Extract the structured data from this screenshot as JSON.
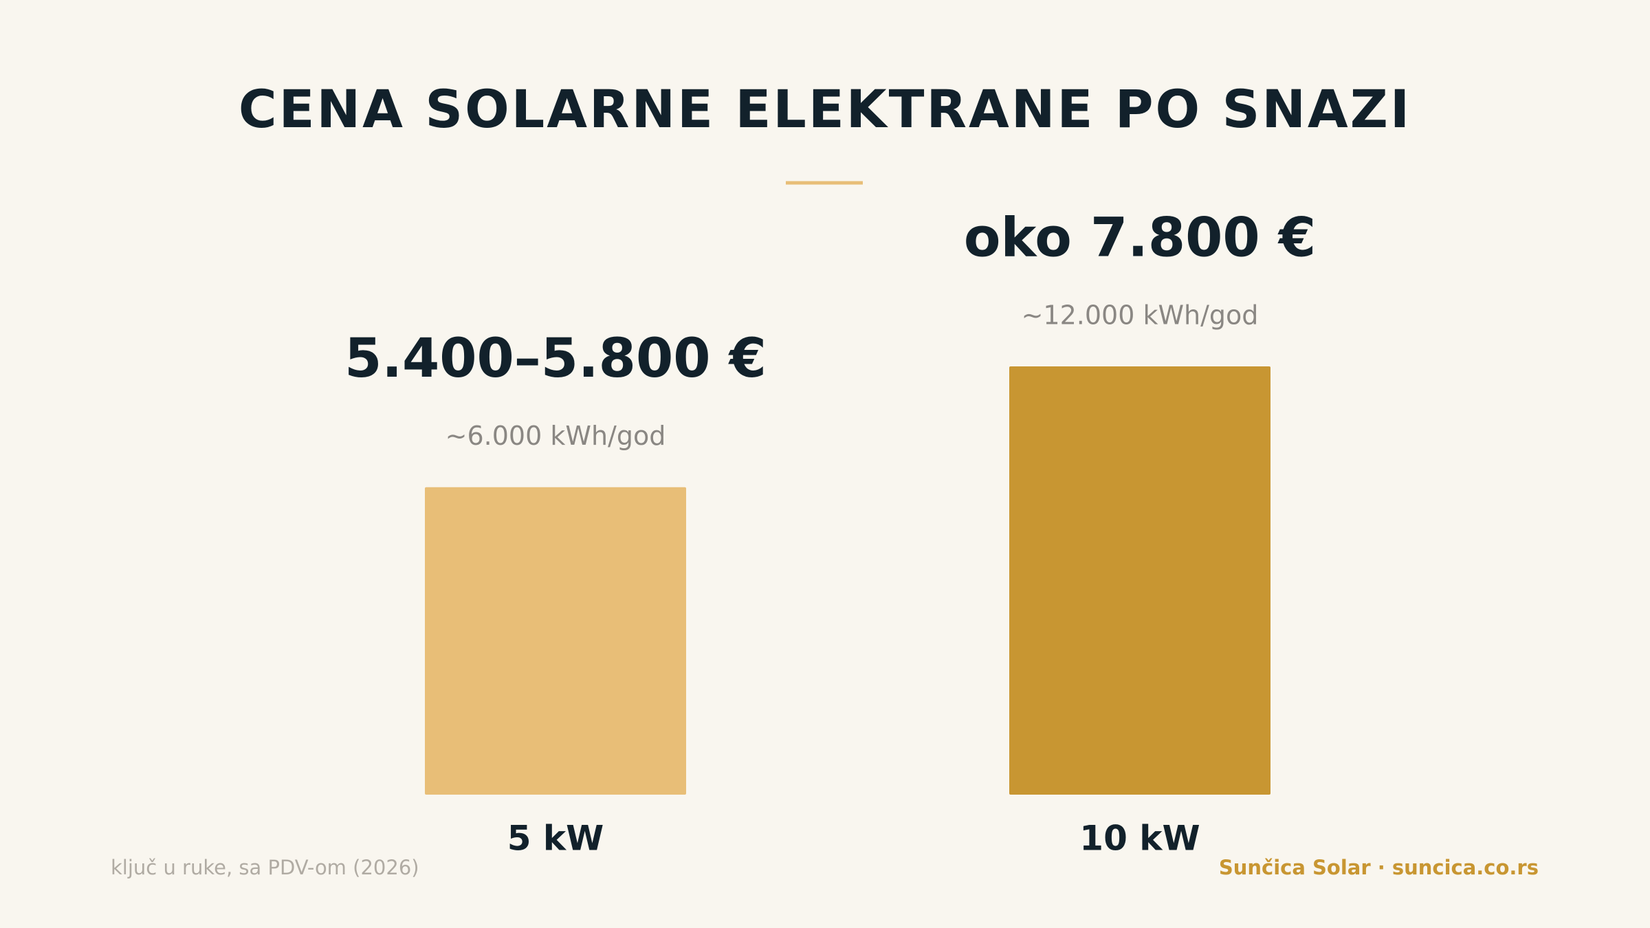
{
  "chart_data": {
    "type": "bar",
    "title": "CENA SOLARNE ELEKTRANE PO SNAZI",
    "categories": [
      "5 kW",
      "10 kW"
    ],
    "values": [
      5600,
      7800
    ],
    "value_labels": [
      "5.400–5.800 €",
      "oko 7.800 €"
    ],
    "sublabels": [
      "~6.000 kWh/god",
      "~12.000 kWh/god"
    ],
    "colors": [
      "#e8be77",
      "#c89632"
    ],
    "footnote": "ključ u ruke, sa PDV-om (2026)",
    "credit": "Sunčica Solar · suncica.co.rs"
  }
}
